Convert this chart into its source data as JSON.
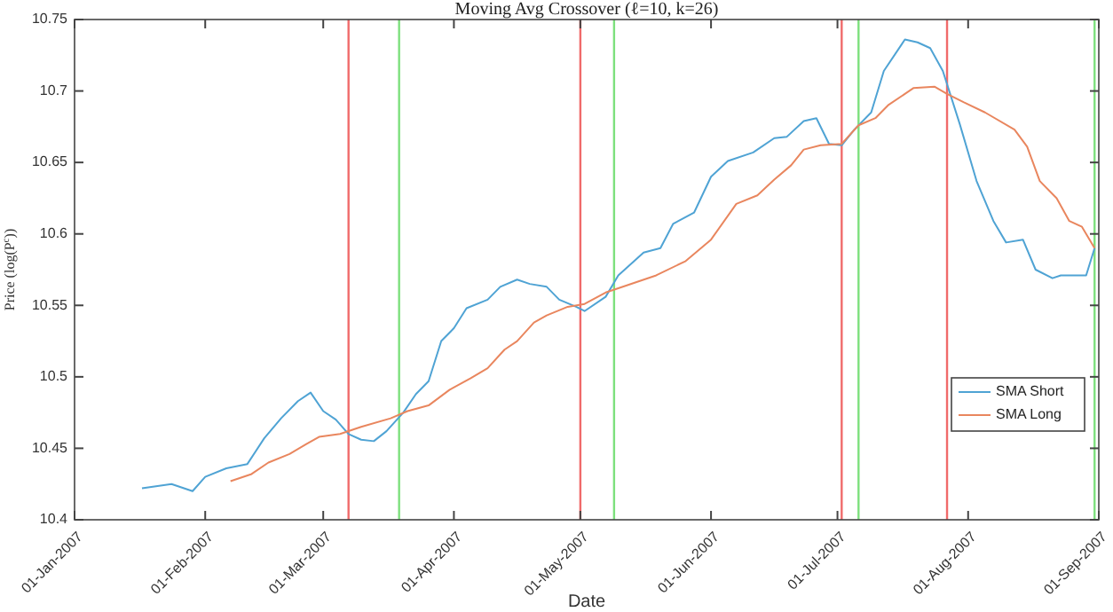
{
  "chart_data": {
    "type": "line",
    "title": "Moving Avg Crossover (ℓ=10, k=26)",
    "xlabel": "Date",
    "ylabel": "Price (log(P$^{c}$))",
    "xlim": [
      "2007-01-01",
      "2007-09-01"
    ],
    "xticks": [
      {
        "value": "2007-01-01",
        "label": "01-Jan-2007"
      },
      {
        "value": "2007-02-01",
        "label": "01-Feb-2007"
      },
      {
        "value": "2007-03-01",
        "label": "01-Mar-2007"
      },
      {
        "value": "2007-04-01",
        "label": "01-Apr-2007"
      },
      {
        "value": "2007-05-01",
        "label": "01-May-2007"
      },
      {
        "value": "2007-06-01",
        "label": "01-Jun-2007"
      },
      {
        "value": "2007-07-01",
        "label": "01-Jul-2007"
      },
      {
        "value": "2007-08-01",
        "label": "01-Aug-2007"
      },
      {
        "value": "2007-09-01",
        "label": "01-Sep-2007"
      }
    ],
    "ylim": [
      10.4,
      10.75
    ],
    "yticks": [
      10.4,
      10.45,
      10.5,
      10.55,
      10.6,
      10.65,
      10.7,
      10.75
    ],
    "grid": false,
    "legend": "bottom right",
    "marker": "none",
    "line_style": "solid",
    "series": [
      {
        "name": "SMA Short",
        "color": "#4fa3d4",
        "x": [
          "2007-01-17",
          "2007-01-24",
          "2007-01-29",
          "2007-02-01",
          "2007-02-06",
          "2007-02-11",
          "2007-02-15",
          "2007-02-19",
          "2007-02-23",
          "2007-02-26",
          "2007-03-01",
          "2007-03-04",
          "2007-03-07",
          "2007-03-10",
          "2007-03-13",
          "2007-03-16",
          "2007-03-20",
          "2007-03-23",
          "2007-03-26",
          "2007-03-29",
          "2007-04-01",
          "2007-04-04",
          "2007-04-09",
          "2007-04-12",
          "2007-04-16",
          "2007-04-19",
          "2007-04-23",
          "2007-04-26",
          "2007-04-30",
          "2007-05-02",
          "2007-05-07",
          "2007-05-10",
          "2007-05-16",
          "2007-05-20",
          "2007-05-23",
          "2007-05-28",
          "2007-06-01",
          "2007-06-05",
          "2007-06-11",
          "2007-06-16",
          "2007-06-19",
          "2007-06-23",
          "2007-06-26",
          "2007-06-29",
          "2007-07-02",
          "2007-07-05",
          "2007-07-09",
          "2007-07-12",
          "2007-07-17",
          "2007-07-20",
          "2007-07-23",
          "2007-07-26",
          "2007-07-30",
          "2007-08-03",
          "2007-08-07",
          "2007-08-10",
          "2007-08-14",
          "2007-08-17",
          "2007-08-21",
          "2007-08-23",
          "2007-08-29",
          "2007-08-31"
        ],
        "values": [
          10.422,
          10.425,
          10.42,
          10.43,
          10.436,
          10.439,
          10.457,
          10.471,
          10.483,
          10.489,
          10.476,
          10.47,
          10.46,
          10.456,
          10.455,
          10.462,
          10.475,
          10.488,
          10.497,
          10.525,
          10.534,
          10.548,
          10.554,
          10.563,
          10.568,
          10.565,
          10.563,
          10.554,
          10.549,
          10.546,
          10.556,
          10.571,
          10.587,
          10.59,
          10.607,
          10.615,
          10.64,
          10.651,
          10.657,
          10.667,
          10.668,
          10.679,
          10.681,
          10.663,
          10.662,
          10.673,
          10.685,
          10.714,
          10.736,
          10.734,
          10.73,
          10.714,
          10.677,
          10.637,
          10.609,
          10.594,
          10.596,
          10.575,
          10.569,
          10.571,
          10.571,
          10.59
        ]
      },
      {
        "name": "SMA Long",
        "color": "#e9865e",
        "x": [
          "2007-02-07",
          "2007-02-12",
          "2007-02-16",
          "2007-02-21",
          "2007-02-25",
          "2007-02-28",
          "2007-03-05",
          "2007-03-10",
          "2007-03-17",
          "2007-03-21",
          "2007-03-26",
          "2007-03-31",
          "2007-04-05",
          "2007-04-09",
          "2007-04-13",
          "2007-04-16",
          "2007-04-20",
          "2007-04-23",
          "2007-04-28",
          "2007-05-02",
          "2007-05-07",
          "2007-05-10",
          "2007-05-19",
          "2007-05-26",
          "2007-06-01",
          "2007-06-07",
          "2007-06-12",
          "2007-06-16",
          "2007-06-20",
          "2007-06-23",
          "2007-06-27",
          "2007-07-02",
          "2007-07-06",
          "2007-07-10",
          "2007-07-13",
          "2007-07-19",
          "2007-07-24",
          "2007-07-27",
          "2007-07-31",
          "2007-08-05",
          "2007-08-12",
          "2007-08-15",
          "2007-08-18",
          "2007-08-22",
          "2007-08-25",
          "2007-08-28",
          "2007-08-31"
        ],
        "values": [
          10.427,
          10.432,
          10.44,
          10.446,
          10.453,
          10.458,
          10.46,
          10.465,
          10.471,
          10.476,
          10.48,
          10.491,
          10.499,
          10.506,
          10.519,
          10.525,
          10.538,
          10.543,
          10.549,
          10.551,
          10.559,
          10.562,
          10.571,
          10.581,
          10.596,
          10.621,
          10.627,
          10.638,
          10.648,
          10.659,
          10.662,
          10.663,
          10.676,
          10.681,
          10.69,
          10.702,
          10.703,
          10.698,
          10.692,
          10.685,
          10.673,
          10.661,
          10.637,
          10.625,
          10.609,
          10.605,
          10.59
        ]
      }
    ],
    "ref_lines": [
      {
        "axis": "x",
        "value": "2007-03-07",
        "color": "#f06a6a"
      },
      {
        "axis": "x",
        "value": "2007-03-19",
        "color": "#7de07d"
      },
      {
        "axis": "x",
        "value": "2007-05-01",
        "color": "#f06a6a"
      },
      {
        "axis": "x",
        "value": "2007-05-09",
        "color": "#7de07d"
      },
      {
        "axis": "x",
        "value": "2007-07-02",
        "color": "#f06a6a"
      },
      {
        "axis": "x",
        "value": "2007-07-06",
        "color": "#7de07d"
      },
      {
        "axis": "x",
        "value": "2007-07-27",
        "color": "#f06a6a"
      },
      {
        "axis": "x",
        "value": "2007-08-31",
        "color": "#7de07d"
      }
    ]
  }
}
